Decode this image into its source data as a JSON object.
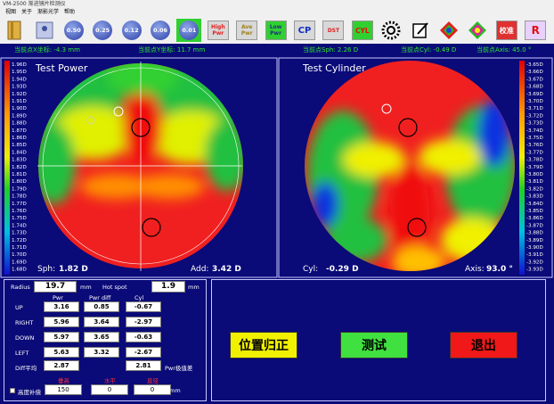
{
  "window": {
    "title": "VM-2500 渐进镜片检测仪",
    "menu": [
      "视图",
      "关于",
      "渐影光学",
      "帮助"
    ]
  },
  "toolbar": {
    "buttons": [
      "0.50",
      "0.25",
      "0.12",
      "0.06",
      "0.01",
      "High Pwr",
      "Ave Pwr",
      "Low Pwr",
      "CP",
      "DST",
      "CYL",
      "校准",
      "R"
    ]
  },
  "status": [
    "当前点X坐标: -4.3 mm",
    "当前点Y坐标: 11.7 mm",
    "当前点Sph: 2.26 D",
    "当前点Cyl: -0.49 D",
    "当前点Axis: 45.0 °"
  ],
  "power_map": {
    "title": "Test Power",
    "scale": [
      "1.96D",
      "1.95D",
      "1.94D",
      "1.93D",
      "1.92D",
      "1.91D",
      "1.90D",
      "1.89D",
      "1.88D",
      "1.87D",
      "1.86D",
      "1.85D",
      "1.84D",
      "1.83D",
      "1.82D",
      "1.81D",
      "1.80D",
      "1.79D",
      "1.78D",
      "1.77D",
      "1.76D",
      "1.75D",
      "1.74D",
      "1.73D",
      "1.72D",
      "1.71D",
      "1.70D",
      "1.69D",
      "1.68D"
    ],
    "sph_label": "Sph:",
    "sph": "1.82 D",
    "add_label": "Add:",
    "add": "3.42 D"
  },
  "cyl_map": {
    "title": "Test Cylinder",
    "scale": [
      "-3.65D",
      "-3.66D",
      "-3.67D",
      "-3.68D",
      "-3.69D",
      "-3.70D",
      "-3.71D",
      "-3.72D",
      "-3.73D",
      "-3.74D",
      "-3.75D",
      "-3.76D",
      "-3.77D",
      "-3.78D",
      "-3.79D",
      "-3.80D",
      "-3.81D",
      "-3.82D",
      "-3.83D",
      "-3.84D",
      "-3.85D",
      "-3.86D",
      "-3.87D",
      "-3.88D",
      "-3.89D",
      "-3.90D",
      "-3.91D",
      "-3.92D",
      "-3.93D"
    ],
    "cyl_label": "Cyl:",
    "cyl": "-0.29 D",
    "axis_label": "Axis:",
    "axis": "93.0 °"
  },
  "measure": {
    "radius_label": "Radius",
    "radius": "19.7",
    "radius_unit": "mm",
    "hotspot_label": "Hot spot",
    "hotspot": "1.9",
    "hotspot_unit": "mm",
    "headers": [
      "Pwr",
      "Pwr diff",
      "Cyl"
    ],
    "rows": [
      {
        "label": "UP",
        "values": [
          "3.16",
          "0.85",
          "-0.67"
        ]
      },
      {
        "label": "RIGHT",
        "values": [
          "5.96",
          "3.64",
          "-2.97"
        ]
      },
      {
        "label": "DOWN",
        "values": [
          "5.97",
          "3.65",
          "-0.63"
        ]
      },
      {
        "label": "LEFT",
        "values": [
          "5.63",
          "3.32",
          "-2.67"
        ]
      }
    ],
    "diff_label": "Diff平均",
    "diff_pwr": "2.87",
    "diff_cyl": "2.81",
    "extreme_label": "Pwr极值差",
    "comp_label": "高度补偿",
    "comp_headers": [
      "垂高",
      "水平",
      "直径"
    ],
    "comp_values": [
      "150",
      "0",
      "0"
    ],
    "comp_unit": "mm"
  },
  "actions": [
    "位置归正",
    "测试",
    "退出"
  ]
}
